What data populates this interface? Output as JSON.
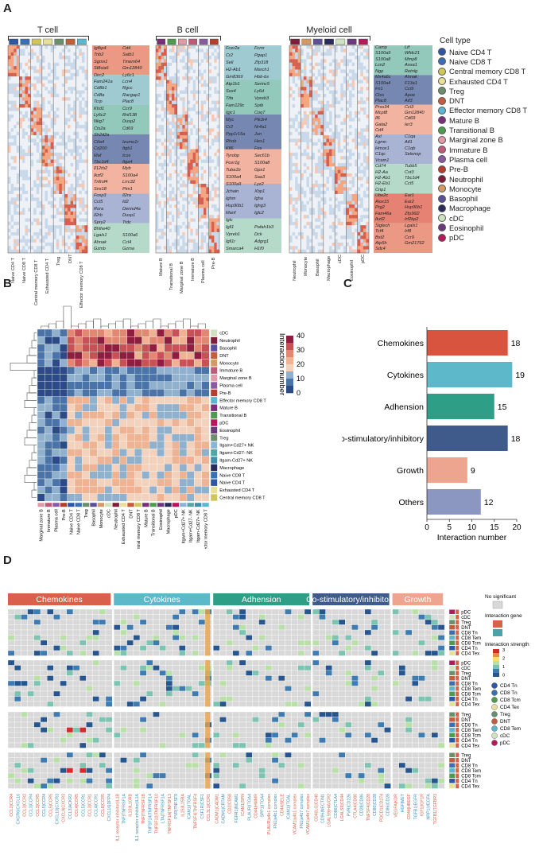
{
  "panels": {
    "a": "A",
    "b": "B",
    "c": "C",
    "d": "D"
  },
  "panelA": {
    "groups": [
      {
        "title": "T cell",
        "columns": [
          "Naive CD4 T",
          "Naive CD8 T",
          "Central memory CD8 T",
          "Exhausted CD4 T",
          "Treg",
          "DNT",
          "Effector memory CD8 T"
        ],
        "colors": [
          "#2e57a3",
          "#3b6fb3",
          "#cfc55a",
          "#e8e098",
          "#6a8f6a",
          "#c45d3c",
          "#5fb4d0"
        ],
        "genes": [
          [
            "Igfbp4",
            "Cd4"
          ],
          [
            "Trib2",
            "Satb1"
          ],
          [
            "Sgms1",
            "Tmem64"
          ],
          [
            "St8sia6",
            "Gm12840"
          ],
          [
            "Dirc2",
            "Ly6c1"
          ],
          [
            "Fam241a",
            "Lcn4"
          ],
          [
            "Cd8b1",
            "Rgcc"
          ],
          [
            "Cd8a",
            "Racgap1"
          ],
          [
            "Tcrp",
            "Plac8"
          ],
          [
            "Klrd1",
            "Ccr9"
          ],
          [
            "Ly6c2",
            "Rnf138"
          ],
          [
            "Nkg7",
            "Dusp2"
          ],
          [
            "Cts2a",
            "Cd69"
          ],
          [
            "Sh2d2a",
            ""
          ],
          [
            "Ctla4",
            "Izumo1r"
          ],
          [
            "Cd200",
            "Itgb1"
          ],
          [
            "Maf",
            "Icos"
          ],
          [
            "Tbc1d4",
            "Itga4"
          ],
          [
            "Il12rb2",
            "Myb"
          ],
          [
            "Ikzf2",
            "S100a4"
          ],
          [
            "Tnfrsf4",
            "Lrrc32"
          ],
          [
            "Snx18",
            "Pim1"
          ],
          [
            "Foxp3",
            "Il2ra"
          ],
          [
            "Ccl5",
            "Id2"
          ],
          [
            "Rora",
            "Dennd4a"
          ],
          [
            "Il2rb",
            "Dusp1"
          ],
          [
            "Spry2",
            "Trdc"
          ],
          [
            "Bhlhe40",
            ""
          ],
          [
            "Lgals1",
            "S100a6"
          ],
          [
            "Ahnak",
            "Ccl4"
          ],
          [
            "Gzmb",
            "Gzma"
          ]
        ]
      },
      {
        "title": "B cell",
        "columns": [
          "Mature B",
          "Transitional B",
          "Marginal zone B",
          "Immature B",
          "Plasma cell",
          "Pre-B"
        ],
        "colors": [
          "#7b2f7a",
          "#4f9a4f",
          "#e19aa6",
          "#c05a7a",
          "#8a5aa0",
          "#b73d2d"
        ],
        "genes": [
          [
            "Fcer2a",
            "Fcmr"
          ],
          [
            "Cr2",
            "Pgap1"
          ],
          [
            "Sell",
            "Zfp318"
          ],
          [
            "H2-Ab1",
            "March1"
          ],
          [
            "Gm8369",
            "Hbb-bs"
          ],
          [
            "Atp1b1",
            "Serinc5"
          ],
          [
            "Sox4",
            "Ly6d"
          ],
          [
            "Tifa",
            "Vpreb3"
          ],
          [
            "Fam129c",
            "Spib"
          ],
          [
            "Igjc1",
            "Coq7"
          ],
          [
            "Myc",
            "Pik3r4"
          ],
          [
            "Cr2",
            "Nr4a1"
          ],
          [
            "Ppp1r15a",
            "Jun"
          ],
          [
            "Rhob",
            "Hes1"
          ],
          [
            "Klf6",
            "Fos"
          ],
          [
            "Tyrobp",
            "Sec61b"
          ],
          [
            "Fcer1g",
            "S100a8"
          ],
          [
            "Tuba1b",
            "Gpx1"
          ],
          [
            "S100a4",
            "Saa3"
          ],
          [
            "S100a9",
            "Lyz2"
          ],
          [
            "Jchain",
            "Xbp1"
          ],
          [
            "Ighm",
            "Igha"
          ],
          [
            "Hsp90b1",
            "Ighg3"
          ],
          [
            "Manf",
            "Iglc2"
          ],
          [
            "Iglc",
            ""
          ],
          [
            "Igll1",
            "Pafah1b3"
          ],
          [
            "Vpreb1",
            "Dck"
          ],
          [
            "Igll1r",
            "Adgrg1"
          ],
          [
            "Smarca4",
            "H1f0"
          ]
        ]
      },
      {
        "title": "Myeloid cell",
        "columns": [
          "Neutrophil",
          "Monocyte",
          "Basophil",
          "Macrophage",
          "cDC",
          "Eosinophil",
          "pDC"
        ],
        "colors": [
          "#7f1d3a",
          "#d49a63",
          "#5b4f9a",
          "#2a2b5a",
          "#cfe2c0",
          "#6c3a7c",
          "#b5195c"
        ],
        "genes": [
          [
            "Camp",
            "Ltf"
          ],
          [
            "S100a9",
            "Wfdc21"
          ],
          [
            "S100a8",
            "Mmp8"
          ],
          [
            "Lcn2",
            "Anxa1"
          ],
          [
            "Ngp",
            "Retnlg"
          ],
          [
            "Ms4a6c",
            "Ahnak"
          ],
          [
            "S100a4",
            "F13a1"
          ],
          [
            "Fn1",
            "Ccl9"
          ],
          [
            "Ctss",
            "Apoe"
          ],
          [
            "Plac8",
            "Aif3"
          ],
          [
            "Prss34",
            "Ccl3"
          ],
          [
            "Mcpt8",
            "Gm12840"
          ],
          [
            "Il6",
            "Cd69"
          ],
          [
            "Gata2",
            "Ier3"
          ],
          [
            "Cd4",
            ""
          ],
          [
            "Axl",
            "C1qa"
          ],
          [
            "Lgmn",
            "Aif1"
          ],
          [
            "Hmox1",
            "C1qb"
          ],
          [
            "C1qc",
            "Selenop"
          ],
          [
            "Vcam1",
            ""
          ],
          [
            "Cd74",
            "Tubb5"
          ],
          [
            "H2-Aa",
            "Cst3"
          ],
          [
            "H2-Ab1",
            "Tbc1d4"
          ],
          [
            "H2-Eb1",
            "Ccl5"
          ],
          [
            "Crip1",
            ""
          ],
          [
            "Ube2c",
            "Ear1"
          ],
          [
            "Alox15",
            "Ear2"
          ],
          [
            "Prg2",
            "Hsp90b1"
          ],
          [
            "Fam46a",
            "Zfp36l2"
          ],
          [
            "Ikzf2",
            "Irf2bp2"
          ],
          [
            "Siglech",
            "Lgals1"
          ],
          [
            "Tcf4",
            "Irf8"
          ],
          [
            "Bst2",
            "Ccr9"
          ],
          [
            "Atp5h",
            "Gm21762"
          ],
          [
            "Sdc4",
            ""
          ]
        ]
      }
    ],
    "legend_title": "Cell type",
    "legend": [
      {
        "name": "Naive CD4 T",
        "color": "#2e57a3"
      },
      {
        "name": "Naive CD8 T",
        "color": "#3b6fb3"
      },
      {
        "name": "Central memory CD8 T",
        "color": "#cfc55a"
      },
      {
        "name": "Exhausted CD4 T",
        "color": "#e8e098"
      },
      {
        "name": "Treg",
        "color": "#6a8f6a"
      },
      {
        "name": "DNT",
        "color": "#c45d3c"
      },
      {
        "name": "Effector memory CD8 T",
        "color": "#5fb4d0"
      },
      {
        "name": "Mature B",
        "color": "#7b2f7a"
      },
      {
        "name": "Transitional B",
        "color": "#4f9a4f"
      },
      {
        "name": "Marginal zone B",
        "color": "#e19aa6"
      },
      {
        "name": "Immature B",
        "color": "#c05a7a"
      },
      {
        "name": "Plasma cell",
        "color": "#8a5aa0"
      },
      {
        "name": "Pre-B",
        "color": "#b73d2d"
      },
      {
        "name": "Neutrophil",
        "color": "#7f1d3a"
      },
      {
        "name": "Monocyte",
        "color": "#d49a63"
      },
      {
        "name": "Basophil",
        "color": "#5b4f9a"
      },
      {
        "name": "Macrophage",
        "color": "#2a2b5a"
      },
      {
        "name": "cDC",
        "color": "#cfe2c0"
      },
      {
        "name": "Eosinophil",
        "color": "#6c3a7c"
      },
      {
        "name": "pDC",
        "color": "#b5195c"
      }
    ]
  },
  "panelB": {
    "rows": [
      "cDC",
      "Neutrophil",
      "Basophil",
      "DNT",
      "Monocyte",
      "Immature B",
      "Marginal zone B",
      "Plasma cell",
      "Pre-B",
      "Effector memory CD8 T",
      "Mature B",
      "Transitional B",
      "pDC",
      "Eosinophil",
      "Treg",
      "Itgam+Cd27+ NK",
      "Itgam+Cd27- NK",
      "Itgam-Cd27+ NK",
      "Macrophage",
      "Naive CD8 T",
      "Naive CD4 T",
      "Exhausted CD4 T",
      "Central memory CD8 T"
    ],
    "cols": [
      "Marginal zone B",
      "Immature B",
      "Plasma cell",
      "Pre-B",
      "Naive CD4 T",
      "Naive CD8 T",
      "Treg",
      "Basophil",
      "Monocyte",
      "cDC",
      "Neutrophil",
      "Exhausted CD4 T",
      "DNT",
      "Central memory CD8 T",
      "Mature B",
      "Transitional B",
      "Eosinophil",
      "Macrophage",
      "pDC",
      "Itgam+Cd27+ NK",
      "Itgam+Cd27- NK",
      "Itgam-Cd27+ NK",
      "Effector memory CD8 T"
    ],
    "colorbar_title": "Interaction number",
    "colorbar_ticks": [
      "40",
      "30",
      "20",
      "10",
      "0"
    ]
  },
  "chart_data": {
    "type": "bar",
    "orientation": "horizontal",
    "categories": [
      "Chemokines",
      "Cytokines",
      "Adhension",
      "Co-stimulatory/inhibitory",
      "Growth",
      "Others"
    ],
    "values": [
      18,
      19,
      15,
      18,
      9,
      12
    ],
    "colors": [
      "#d9543f",
      "#5db8c9",
      "#2e9e86",
      "#3f5b8c",
      "#eea58f",
      "#8b97c0"
    ],
    "xlabel": "Interaction number",
    "xlim": [
      0,
      20
    ],
    "xticks": [
      "0",
      "5",
      "10",
      "15",
      "20"
    ]
  },
  "panelD": {
    "categories": [
      {
        "name": "Chemokines",
        "color": "#d9604a"
      },
      {
        "name": "Cytokines",
        "color": "#5db8c9"
      },
      {
        "name": "Adhension",
        "color": "#2e9e86"
      },
      {
        "name": "Co-stimulatory/inhibitory",
        "color": "#3f5b8c"
      },
      {
        "name": "Growth",
        "color": "#eea58f"
      }
    ],
    "blocks": [
      {
        "rows": [
          "pDC",
          "cDC",
          "Treg",
          "DNT",
          "CD8 Tn",
          "CD8 Tem",
          "CD8 Tcm",
          "CD4 Tn",
          "CD4 Tex"
        ]
      },
      {
        "rows": [
          "pDC",
          "cDC",
          "Treg",
          "DNT",
          "CD8 Tn",
          "CD8 Tem",
          "CD8 Tcm",
          "CD4 Tn",
          "CD4 Tex"
        ]
      },
      {
        "rows": [
          "Treg",
          "DNT",
          "CD8 Tn",
          "CD8 Tem",
          "CD8 Tcm",
          "CD4 Tn",
          "CD4 Tex"
        ]
      },
      {
        "rows": [
          "Treg",
          "DNT",
          "CD8 Tn",
          "CD8 Tem",
          "CD8 Tcm",
          "CD4 Tn",
          "CD4 Tex"
        ]
      }
    ],
    "genes": [
      "CCL2|CCR4",
      "CXCR6|CXCL16",
      "CCL3|CCR2",
      "CCL3|CCR4",
      "CCL3|CCR5",
      "CCL5|CCR4",
      "CCL5|CCR5",
      "CXCL10|CXCR3",
      "CXCL9|CXCR3",
      "CCL3|ACKR2",
      "CCL4|CCR5",
      "CCL5|CCR1",
      "CCL3|CCR1",
      "CCL4|CCR1",
      "CCL8|CCR5",
      "CXCL16|DPP4",
      "IL1 receptor inhibitor|IL1B",
      "TNF|TNFRSF1A",
      "IL10|IL10RB",
      "IL1 receptor inhibitor|IL1A",
      "TNF|TNFRSF1B",
      "TNFSF14|TNFRSF14",
      "TNFSF10|TNFRSF10",
      "LTA|TNFRSF1A",
      "TNFRSF1A|TNFSF13",
      "PVR|TNFSF9",
      "IL15|IL15RA",
      "ICAM1|ITGAL",
      "TNFSF4|TNFRSF4",
      "CSF1R|CSF1",
      "CCL3L1|CCR1",
      "CADM1|CADM1",
      "CADM1|CRTAM",
      "CD2|CD58",
      "FGFR1|NCAM1",
      "ICAM1|SPN",
      "PLAUR|ITGA4",
      "CD44|HMMR",
      "SPP1|ITGA4",
      "PLAUR|a4b1 complex",
      "FN1|a4b1 complex",
      "CD44|SELE",
      "ICAM1|ITGAL",
      "VCAM1|a4b1 complex",
      "FN1|a4b7 complex",
      "VCAM1|a4b7 complex",
      "CD40LG|CD40",
      "CD96|NECTIN1",
      "LGALS9|HAVCR2",
      "CD86|CTLA4",
      "LGALS9|CD44",
      "PVR|CD226",
      "CTLA4|CD80",
      "CD28|CD86",
      "TNFSF4|CD28",
      "CD80|CD28",
      "PDCD1|CD274",
      "CD86|CD28",
      "VEGFA|KDR",
      "HGF|MET",
      "CD44|HBEGF",
      "TGFB1|EGFR",
      "IGF1|IGF1R",
      "NRP1|VEGFA",
      "TGFB1|TGFBR3"
    ],
    "legend": {
      "no_sig_label": "No significant",
      "interaction_gene_label": "Interaction gene",
      "strength_label": "Interaction strength",
      "strength_ticks": [
        "3",
        "2",
        "1",
        "0"
      ],
      "cells": [
        {
          "name": "CD4 Tn",
          "color": "#2e57a3"
        },
        {
          "name": "CD8 Tn",
          "color": "#3b6fb3"
        },
        {
          "name": "CD8 Tcm",
          "color": "#4f9a4f"
        },
        {
          "name": "CD4 Tex",
          "color": "#e8e098"
        },
        {
          "name": "Treg",
          "color": "#6a8f6a"
        },
        {
          "name": "DNT",
          "color": "#c45d3c"
        },
        {
          "name": "CD8 Tem",
          "color": "#5fb4d0"
        },
        {
          "name": "cDC",
          "color": "#cfe2c0"
        },
        {
          "name": "pDC",
          "color": "#b5195c"
        }
      ]
    }
  }
}
